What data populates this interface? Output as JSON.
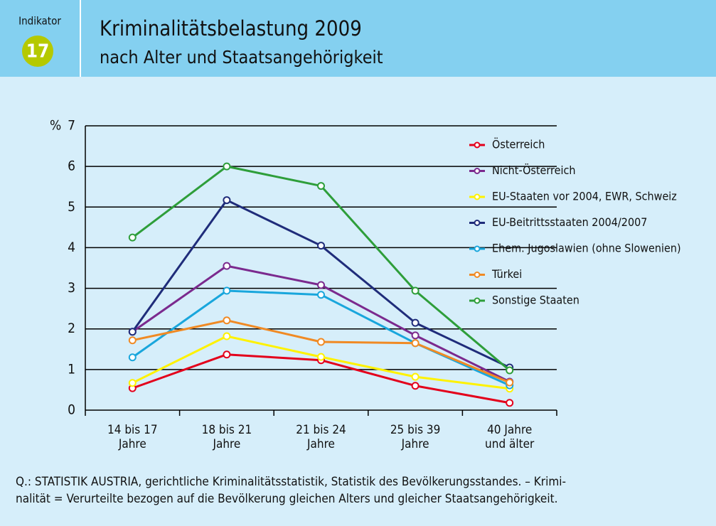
{
  "header": {
    "indicator": "Indikator",
    "number": "17"
  },
  "chart_data": {
    "type": "line",
    "title": "Kriminalitätsbelastung 2009",
    "subtitle": "nach Alter und Staatsangehörigkeit",
    "y_label": "%",
    "categories": [
      [
        "14 bis 17",
        "Jahre"
      ],
      [
        "18 bis 21",
        "Jahre"
      ],
      [
        "21 bis 24",
        "Jahre"
      ],
      [
        "25 bis 39",
        "Jahre"
      ],
      [
        "40 Jahre",
        "und älter"
      ]
    ],
    "series": [
      {
        "name": "Österreich",
        "color": "#e3001b",
        "values": [
          0.54,
          1.37,
          1.23,
          0.6,
          0.18
        ]
      },
      {
        "name": "Nicht-Österreich",
        "color": "#7b2a8e",
        "values": [
          1.93,
          3.55,
          3.08,
          1.84,
          0.7
        ]
      },
      {
        "name": "EU-Staaten vor 2004, EWR, Schweiz",
        "color": "#fff200",
        "values": [
          0.67,
          1.82,
          1.31,
          0.82,
          0.53
        ]
      },
      {
        "name": "EU-Beitrittsstaaten 2004/2007",
        "color": "#1f2c7a",
        "values": [
          1.93,
          5.17,
          4.05,
          2.15,
          1.05
        ]
      },
      {
        "name": "Ehem. Jugoslawien (ohne Slowenien)",
        "color": "#19a6dc",
        "values": [
          1.3,
          2.94,
          2.84,
          1.65,
          0.61
        ]
      },
      {
        "name": "Türkei",
        "color": "#f08a24",
        "values": [
          1.72,
          2.21,
          1.68,
          1.65,
          0.68
        ]
      },
      {
        "name": "Sonstige Staaten",
        "color": "#2e9e3a",
        "values": [
          4.25,
          6.0,
          5.52,
          2.94,
          0.98
        ]
      }
    ],
    "ylim": [
      0,
      7
    ],
    "yticks": [
      0,
      1,
      2,
      3,
      4,
      5,
      6,
      7
    ],
    "grid": true,
    "legend": "upper right"
  },
  "footer": [
    "Q.: STATISTIK AUSTRIA, gerichtliche Kriminalitätsstatistik, Statistik des Bevölkerungsstandes. – Krimi-",
    "nalität = Verurteilte bezogen auf die Bevölkerung gleichen Alters und gleicher Staatsangehörigkeit."
  ]
}
